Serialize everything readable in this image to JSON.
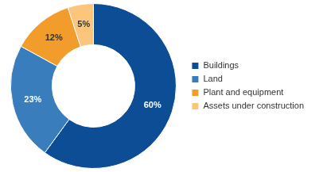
{
  "chart_data": {
    "type": "doughnut",
    "categories": [
      "Buildings",
      "Land",
      "Plant and equipment",
      "Assets under construction"
    ],
    "values": [
      60,
      23,
      12,
      5
    ],
    "value_labels": [
      "60%",
      "23%",
      "12%",
      "5%"
    ],
    "colors": [
      "#0c4d96",
      "#3a7dbd",
      "#f29d2b",
      "#fcc57c"
    ],
    "data_labels": true,
    "legend": "right"
  }
}
